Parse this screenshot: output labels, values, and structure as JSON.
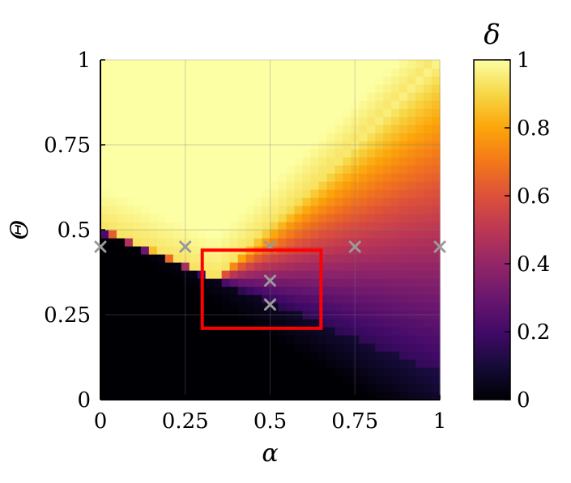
{
  "chart_data": {
    "type": "heatmap",
    "title": "",
    "xlabel": "α",
    "ylabel": "Θ",
    "xlim": [
      0,
      1
    ],
    "ylim": [
      0,
      1
    ],
    "x_ticks": [
      "0",
      "0.25",
      "0.5",
      "0.75",
      "1"
    ],
    "x_tick_values": [
      0,
      0.25,
      0.5,
      0.75,
      1
    ],
    "y_ticks": [
      "0",
      "0.25",
      "0.5",
      "0.75",
      "1"
    ],
    "y_tick_values": [
      0,
      0.25,
      0.5,
      0.75,
      1
    ],
    "grid": true,
    "colormap": "inferno",
    "colorbar": {
      "label": "δ",
      "range": [
        0,
        1
      ],
      "ticks": [
        "0",
        "0.2",
        "0.4",
        "0.6",
        "0.8",
        "1"
      ],
      "tick_values": [
        0,
        0.2,
        0.4,
        0.6,
        0.8,
        1
      ]
    },
    "value_pattern": {
      "description_regions": "near 0 below lower boundary, near 1 above upper boundary, graded in between",
      "lower_boundary_theta_at_alpha_0": 0.49,
      "lower_boundary_theta_at_alpha_1": 0.08,
      "upper_boundary_knee_alpha": 0.34,
      "upper_boundary_theta_at_knee": 0.36,
      "upper_boundary_theta_at_alpha_0": 0.51,
      "upper_boundary_theta_at_alpha_1": 1.0
    },
    "markers": {
      "symbol": "x",
      "color": "#9a9a9a",
      "points": [
        {
          "alpha": 0.0,
          "theta": 0.45
        },
        {
          "alpha": 0.25,
          "theta": 0.45
        },
        {
          "alpha": 0.5,
          "theta": 0.45
        },
        {
          "alpha": 0.75,
          "theta": 0.45
        },
        {
          "alpha": 1.0,
          "theta": 0.45
        },
        {
          "alpha": 0.5,
          "theta": 0.35
        },
        {
          "alpha": 0.5,
          "theta": 0.28
        }
      ]
    },
    "highlight_box": {
      "color": "#ff0000",
      "alpha_range": [
        0.3,
        0.65
      ],
      "theta_range": [
        0.21,
        0.44
      ]
    }
  }
}
